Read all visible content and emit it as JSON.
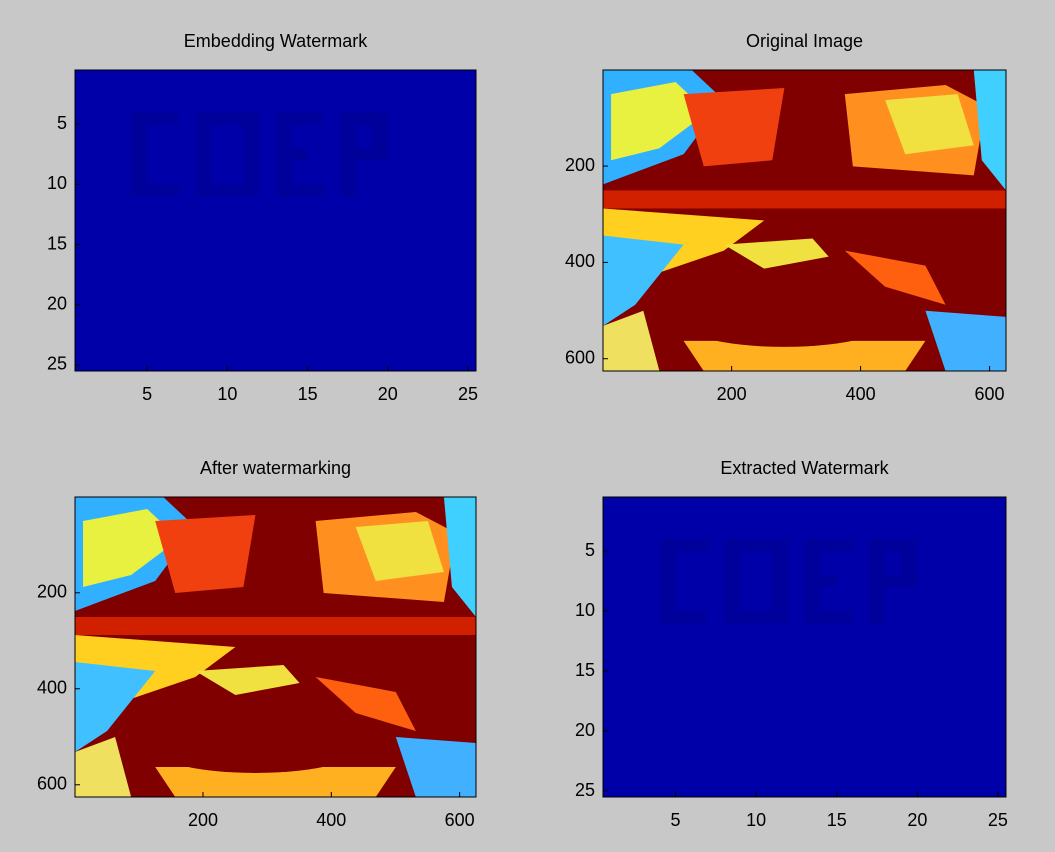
{
  "chart_data": [
    {
      "type": "image",
      "title": "Embedding Watermark",
      "xlim": [
        0.5,
        25.5
      ],
      "ylim": [
        0.5,
        25.5
      ],
      "xticks": [
        5,
        10,
        15,
        20,
        25
      ],
      "yticks": [
        5,
        10,
        15,
        20,
        25
      ]
    },
    {
      "type": "image",
      "title": "Original Image",
      "xlim": [
        0.5,
        625.5
      ],
      "ylim": [
        0.5,
        625.5
      ],
      "xticks": [
        200,
        400,
        600
      ],
      "yticks": [
        200,
        400,
        600
      ]
    },
    {
      "type": "image",
      "title": "After watermarking",
      "xlim": [
        0.5,
        625.5
      ],
      "ylim": [
        0.5,
        625.5
      ],
      "xticks": [
        200,
        400,
        600
      ],
      "yticks": [
        200,
        400,
        600
      ]
    },
    {
      "type": "image",
      "title": "Extracted Watermark",
      "xlim": [
        0.5,
        25.5
      ],
      "ylim": [
        0.5,
        25.5
      ],
      "xticks": [
        5,
        10,
        15,
        20,
        25
      ],
      "yticks": [
        5,
        10,
        15,
        20,
        25
      ]
    }
  ]
}
